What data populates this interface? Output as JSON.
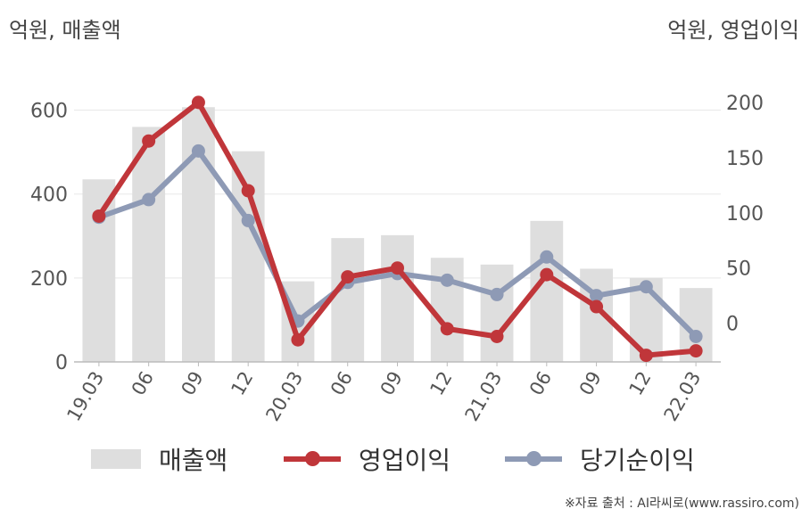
{
  "header": {
    "left_unit": "억원, 매출액",
    "right_unit": "억원, 영업이익"
  },
  "source": "※자료 출처 : AI라씨로(www.rassiro.com)",
  "colors": {
    "bar": "#dedede",
    "operating_profit": "#c0363a",
    "net_income": "#8e9ab5",
    "grid": "#e8e8e8",
    "axis": "#bbbbbb"
  },
  "chart_data": {
    "type": "bar+line",
    "categories": [
      "19.03",
      "06",
      "09",
      "12",
      "20.03",
      "06",
      "09",
      "12",
      "21.03",
      "06",
      "09",
      "12",
      "22.03"
    ],
    "y_left": {
      "label": "억원, 매출액",
      "ticks": [
        0,
        200,
        400,
        600
      ],
      "range": [
        0,
        650
      ]
    },
    "y_right": {
      "label": "억원, 영업이익",
      "ticks": [
        0,
        50,
        100,
        150,
        200
      ],
      "range": [
        -35,
        212
      ]
    },
    "grid": true,
    "legend_position": "bottom",
    "series": [
      {
        "name": "매출액",
        "kind": "bar",
        "axis": "left",
        "values": [
          435,
          560,
          607,
          502,
          192,
          295,
          302,
          248,
          232,
          336,
          222,
          200,
          176
        ]
      },
      {
        "name": "영업이익",
        "kind": "line",
        "axis": "right",
        "values": [
          97,
          165,
          200,
          120,
          -15,
          42,
          50,
          -5,
          -12,
          44,
          15,
          -29,
          -25
        ]
      },
      {
        "name": "당기순이익",
        "kind": "line",
        "axis": "right",
        "values": [
          96,
          112,
          156,
          93,
          2,
          37,
          45,
          39,
          26,
          60,
          25,
          33,
          -12
        ]
      }
    ]
  }
}
